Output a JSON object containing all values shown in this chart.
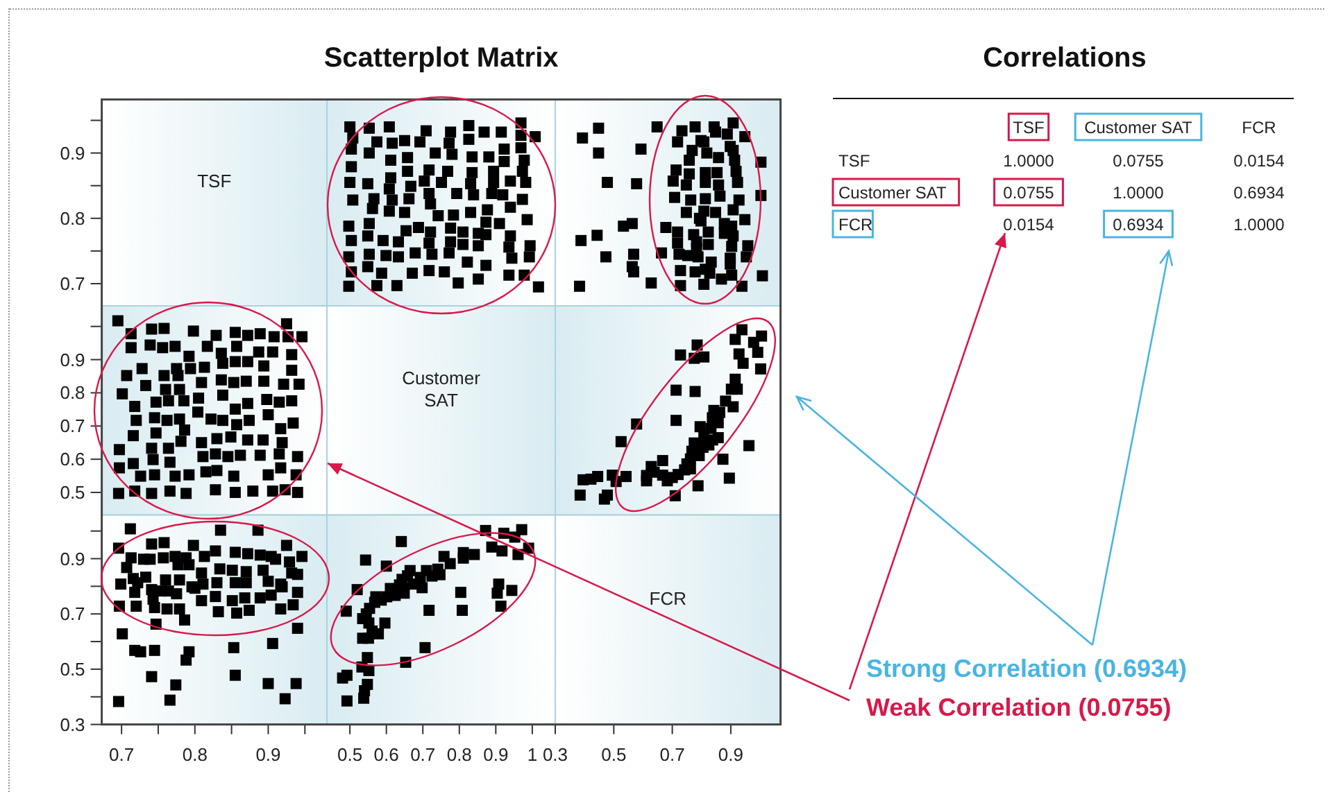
{
  "chart_data": [
    {
      "type": "other",
      "title": "Scatterplot Matrix"
    },
    {
      "type": "scatter",
      "annotations": [
        "TSF"
      ],
      "xlim": [
        0.673,
        0.98
      ],
      "ylim": [
        0.666,
        0.982
      ],
      "yticks": [
        0.7,
        {
          "value": 0.75,
          "label": null
        },
        0.8,
        {
          "value": 0.85,
          "label": null
        },
        0.9,
        {
          "value": 0.95,
          "label": null
        }
      ],
      "tick_labels": "y"
    },
    {
      "type": "scatter",
      "color": "#000000",
      "marker": "square",
      "xlim": [
        0.437,
        1.063
      ],
      "ylim": [
        0.666,
        0.982
      ],
      "x": [
        1.017,
        0.978,
        0.992,
        0.994,
        0.986,
        0.973,
        0.982,
        0.973,
        0.978,
        0.969,
        1.008,
        0.969,
        0.969,
        0.936,
        0.944,
        0.936,
        0.94,
        0.91,
        0.94,
        0.919,
        0.94,
        0.923,
        0.923,
        0.915,
        0.852,
        0.873,
        0.852,
        0.873,
        0.852,
        0.873,
        0.877,
        0.889,
        0.894,
        0.894,
        0.881,
        0.868,
        0.822,
        0.797,
        0.81,
        0.81,
        0.831,
        0.839,
        0.831,
        0.835,
        0.835,
        0.826,
        0.826,
        0.759,
        0.772,
        0.776,
        0.776,
        0.784,
        0.793,
        0.751,
        0.768,
        0.78,
        0.772,
        0.776,
        0.717,
        0.725,
        0.717,
        0.721,
        0.742,
        0.721,
        0.717,
        0.704,
        0.717,
        0.734,
        0.692,
        0.709,
        0.671,
        0.679,
        0.688,
        0.654,
        0.65,
        0.662,
        0.667,
        0.658,
        0.658,
        0.65,
        0.629,
        0.633,
        0.633,
        0.608,
        0.616,
        0.608,
        0.612,
        0.612,
        0.616,
        0.608,
        0.574,
        0.587,
        0.599,
        0.591,
        0.549,
        0.553,
        0.549,
        0.553,
        0.562,
        0.566,
        0.549,
        0.553,
        0.574,
        0.553,
        0.497,
        0.504,
        0.497,
        0.504,
        0.497,
        0.508,
        0.5,
        0.504,
        0.504,
        0.508,
        0.5
      ],
      "values": [
        0.695,
        0.713,
        0.741,
        0.758,
        0.798,
        0.829,
        0.855,
        0.872,
        0.889,
        0.908,
        0.925,
        0.927,
        0.946,
        0.713,
        0.739,
        0.756,
        0.773,
        0.792,
        0.817,
        0.836,
        0.857,
        0.887,
        0.906,
        0.932,
        0.707,
        0.728,
        0.758,
        0.775,
        0.777,
        0.794,
        0.813,
        0.838,
        0.855,
        0.872,
        0.894,
        0.932,
        0.733,
        0.701,
        0.76,
        0.779,
        0.809,
        0.836,
        0.853,
        0.87,
        0.894,
        0.921,
        0.942,
        0.718,
        0.747,
        0.764,
        0.785,
        0.805,
        0.838,
        0.855,
        0.872,
        0.898,
        0.915,
        0.932,
        0.72,
        0.745,
        0.762,
        0.779,
        0.804,
        0.822,
        0.838,
        0.857,
        0.874,
        0.9,
        0.917,
        0.934,
        0.716,
        0.747,
        0.786,
        0.781,
        0.809,
        0.83,
        0.849,
        0.872,
        0.893,
        0.919,
        0.697,
        0.741,
        0.764,
        0.811,
        0.828,
        0.845,
        0.862,
        0.889,
        0.915,
        0.94,
        0.697,
        0.716,
        0.743,
        0.766,
        0.726,
        0.745,
        0.773,
        0.792,
        0.815,
        0.83,
        0.853,
        0.9,
        0.917,
        0.938,
        0.696,
        0.718,
        0.741,
        0.766,
        0.788,
        0.828,
        0.855,
        0.879,
        0.906,
        0.923,
        0.94
      ]
    },
    {
      "type": "scatter",
      "color": "#000000",
      "marker": "square",
      "xlim": [
        0.3,
        1.07
      ],
      "ylim": [
        0.666,
        0.982
      ],
      "x": [
        1.008,
        1.003,
        1.003,
        0.938,
        0.953,
        0.958,
        0.948,
        0.948,
        0.903,
        0.898,
        0.898,
        0.903,
        0.908,
        0.903,
        0.908,
        0.928,
        0.923,
        0.918,
        0.913,
        0.908,
        0.888,
        0.908,
        0.868,
        0.828,
        0.833,
        0.823,
        0.878,
        0.878,
        0.848,
        0.863,
        0.858,
        0.853,
        0.858,
        0.898,
        0.848,
        0.808,
        0.813,
        0.788,
        0.783,
        0.823,
        0.798,
        0.808,
        0.813,
        0.813,
        0.813,
        0.818,
        0.798,
        0.843,
        0.778,
        0.753,
        0.783,
        0.773,
        0.793,
        0.763,
        0.748,
        0.758,
        0.758,
        0.768,
        0.808,
        0.778,
        0.728,
        0.728,
        0.723,
        0.718,
        0.718,
        0.748,
        0.708,
        0.703,
        0.713,
        0.718,
        0.733,
        0.663,
        0.678,
        0.628,
        0.568,
        0.563,
        0.568,
        0.563,
        0.533,
        0.578,
        0.593,
        0.648,
        0.473,
        0.443,
        0.478,
        0.448,
        0.448,
        0.383,
        0.388,
        0.393
      ],
      "values": [
        0.712,
        0.835,
        0.886,
        0.696,
        0.741,
        0.758,
        0.798,
        0.925,
        0.713,
        0.73,
        0.739,
        0.757,
        0.773,
        0.788,
        0.813,
        0.828,
        0.855,
        0.872,
        0.889,
        0.904,
        0.929,
        0.946,
        0.707,
        0.716,
        0.733,
        0.76,
        0.777,
        0.792,
        0.809,
        0.834,
        0.851,
        0.87,
        0.893,
        0.91,
        0.932,
        0.699,
        0.722,
        0.741,
        0.764,
        0.779,
        0.796,
        0.811,
        0.83,
        0.855,
        0.87,
        0.9,
        0.919,
        0.94,
        0.718,
        0.743,
        0.754,
        0.775,
        0.8,
        0.828,
        0.851,
        0.868,
        0.889,
        0.904,
        0.917,
        0.94,
        0.697,
        0.72,
        0.745,
        0.762,
        0.779,
        0.809,
        0.832,
        0.857,
        0.874,
        0.917,
        0.934,
        0.747,
        0.786,
        0.701,
        0.718,
        0.726,
        0.745,
        0.792,
        0.788,
        0.853,
        0.906,
        0.94,
        0.741,
        0.774,
        0.855,
        0.9,
        0.938,
        0.696,
        0.766,
        0.923
      ]
    },
    {
      "type": "scatter",
      "color": "#000000",
      "marker": "square",
      "xlim": [
        0.673,
        0.98
      ],
      "ylim": [
        0.432,
        1.062
      ],
      "yticks": [
        0.5,
        0.6,
        0.7,
        0.8,
        0.9,
        {
          "value": 1.0,
          "label": null
        }
      ],
      "tick_labels": "y",
      "x": [
        0.695,
        0.713,
        0.741,
        0.758,
        0.798,
        0.829,
        0.855,
        0.872,
        0.889,
        0.908,
        0.925,
        0.927,
        0.946,
        0.713,
        0.739,
        0.756,
        0.773,
        0.792,
        0.817,
        0.836,
        0.857,
        0.887,
        0.906,
        0.932,
        0.707,
        0.728,
        0.758,
        0.775,
        0.777,
        0.794,
        0.813,
        0.838,
        0.855,
        0.872,
        0.894,
        0.932,
        0.733,
        0.701,
        0.76,
        0.779,
        0.809,
        0.836,
        0.853,
        0.87,
        0.894,
        0.921,
        0.942,
        0.718,
        0.747,
        0.764,
        0.785,
        0.805,
        0.838,
        0.855,
        0.872,
        0.898,
        0.915,
        0.932,
        0.72,
        0.745,
        0.762,
        0.779,
        0.804,
        0.822,
        0.838,
        0.857,
        0.874,
        0.9,
        0.917,
        0.934,
        0.716,
        0.747,
        0.786,
        0.781,
        0.809,
        0.83,
        0.849,
        0.872,
        0.893,
        0.919,
        0.697,
        0.741,
        0.764,
        0.811,
        0.828,
        0.845,
        0.862,
        0.889,
        0.915,
        0.94,
        0.697,
        0.716,
        0.743,
        0.766,
        0.726,
        0.745,
        0.773,
        0.792,
        0.815,
        0.83,
        0.853,
        0.9,
        0.917,
        0.938,
        0.696,
        0.718,
        0.741,
        0.766,
        0.788,
        0.828,
        0.855,
        0.879,
        0.906,
        0.923,
        0.94
      ],
      "values": [
        1.017,
        0.978,
        0.992,
        0.994,
        0.986,
        0.973,
        0.982,
        0.973,
        0.978,
        0.969,
        1.008,
        0.969,
        0.969,
        0.936,
        0.944,
        0.936,
        0.94,
        0.91,
        0.94,
        0.919,
        0.94,
        0.923,
        0.923,
        0.915,
        0.852,
        0.873,
        0.852,
        0.873,
        0.852,
        0.873,
        0.877,
        0.889,
        0.894,
        0.894,
        0.881,
        0.868,
        0.822,
        0.797,
        0.81,
        0.81,
        0.831,
        0.839,
        0.831,
        0.835,
        0.835,
        0.826,
        0.826,
        0.759,
        0.772,
        0.776,
        0.776,
        0.784,
        0.793,
        0.751,
        0.768,
        0.78,
        0.772,
        0.776,
        0.717,
        0.725,
        0.717,
        0.721,
        0.742,
        0.721,
        0.717,
        0.704,
        0.717,
        0.734,
        0.692,
        0.709,
        0.671,
        0.679,
        0.688,
        0.654,
        0.65,
        0.662,
        0.667,
        0.658,
        0.658,
        0.65,
        0.629,
        0.633,
        0.633,
        0.608,
        0.616,
        0.608,
        0.612,
        0.612,
        0.616,
        0.608,
        0.574,
        0.587,
        0.599,
        0.591,
        0.549,
        0.553,
        0.549,
        0.553,
        0.562,
        0.566,
        0.549,
        0.553,
        0.574,
        0.553,
        0.497,
        0.504,
        0.497,
        0.504,
        0.497,
        0.508,
        0.5,
        0.504,
        0.504,
        0.508,
        0.5
      ]
    },
    {
      "type": "other",
      "annotations": [
        "Customer SAT"
      ]
    },
    {
      "type": "scatter",
      "color": "#000000",
      "marker": "square",
      "xlim": [
        0.3,
        1.07
      ],
      "ylim": [
        0.432,
        1.062
      ],
      "x": [
        1.002,
        0.992,
        1.005,
        0.978,
        0.962,
        0.942,
        0.928,
        0.915,
        0.938,
        0.922,
        0.915,
        0.902,
        0.908,
        0.882,
        0.895,
        0.873,
        0.857,
        0.862,
        0.842,
        0.857,
        0.825,
        0.805,
        0.838,
        0.832,
        0.837,
        0.795,
        0.793,
        0.792,
        0.762,
        0.75,
        0.762,
        0.742,
        0.72,
        0.7,
        0.683,
        0.667,
        0.667,
        0.638,
        0.628,
        0.612,
        0.612,
        0.788,
        0.71,
        0.778,
        0.713,
        0.713,
        0.808,
        0.775,
        0.785,
        0.728,
        0.578,
        0.525,
        0.542,
        0.508,
        0.495,
        0.468,
        0.478,
        0.445,
        0.422,
        0.395,
        0.385,
        0.775,
        0.767,
        0.808
      ],
      "values": [
        0.872,
        0.922,
        0.971,
        0.952,
        0.641,
        0.889,
        0.917,
        0.961,
        0.99,
        0.811,
        0.841,
        0.811,
        0.758,
        0.775,
        0.543,
        0.6,
        0.71,
        0.741,
        0.747,
        0.665,
        0.643,
        0.636,
        0.658,
        0.693,
        0.725,
        0.698,
        0.645,
        0.611,
        0.601,
        0.586,
        0.571,
        0.568,
        0.554,
        0.545,
        0.535,
        0.552,
        0.596,
        0.561,
        0.578,
        0.535,
        0.551,
        0.52,
        0.49,
        0.804,
        0.717,
        0.808,
        0.908,
        0.904,
        0.944,
        0.914,
        0.706,
        0.653,
        0.548,
        0.533,
        0.552,
        0.48,
        0.492,
        0.548,
        0.54,
        0.538,
        0.492,
        0.649,
        0.624,
        0.674
      ]
    },
    {
      "type": "scatter",
      "color": "#000000",
      "marker": "square",
      "xlim": [
        0.673,
        0.98
      ],
      "ylim": [
        0.3,
        1.058
      ],
      "xticks": [
        0.7,
        {
          "value": 0.75,
          "label": null
        },
        0.8,
        {
          "value": 0.85,
          "label": null
        },
        0.9,
        {
          "value": 0.95,
          "label": null
        }
      ],
      "yticks": [
        0.3,
        {
          "value": 0.4,
          "label": null
        },
        0.5,
        {
          "value": 0.6,
          "label": null
        },
        0.7,
        {
          "value": 0.8,
          "label": null
        },
        0.9,
        {
          "value": 1.0,
          "label": null
        }
      ],
      "x": [
        0.712,
        0.835,
        0.886,
        0.696,
        0.741,
        0.758,
        0.798,
        0.925,
        0.713,
        0.73,
        0.739,
        0.757,
        0.773,
        0.788,
        0.813,
        0.828,
        0.855,
        0.872,
        0.889,
        0.904,
        0.929,
        0.946,
        0.707,
        0.716,
        0.733,
        0.76,
        0.777,
        0.792,
        0.809,
        0.834,
        0.851,
        0.87,
        0.893,
        0.91,
        0.932,
        0.699,
        0.722,
        0.741,
        0.764,
        0.779,
        0.796,
        0.811,
        0.83,
        0.855,
        0.87,
        0.9,
        0.919,
        0.94,
        0.718,
        0.743,
        0.754,
        0.775,
        0.8,
        0.828,
        0.851,
        0.868,
        0.889,
        0.904,
        0.917,
        0.94,
        0.697,
        0.72,
        0.745,
        0.762,
        0.779,
        0.809,
        0.832,
        0.857,
        0.874,
        0.917,
        0.934,
        0.747,
        0.786,
        0.701,
        0.718,
        0.726,
        0.745,
        0.792,
        0.788,
        0.853,
        0.906,
        0.94,
        0.741,
        0.774,
        0.855,
        0.9,
        0.938,
        0.696,
        0.766,
        0.923
      ],
      "values": [
        1.008,
        1.003,
        1.003,
        0.938,
        0.953,
        0.958,
        0.948,
        0.948,
        0.903,
        0.898,
        0.898,
        0.903,
        0.908,
        0.903,
        0.908,
        0.928,
        0.923,
        0.918,
        0.913,
        0.908,
        0.888,
        0.908,
        0.868,
        0.828,
        0.833,
        0.823,
        0.878,
        0.878,
        0.848,
        0.863,
        0.858,
        0.853,
        0.858,
        0.898,
        0.848,
        0.808,
        0.813,
        0.788,
        0.783,
        0.823,
        0.798,
        0.808,
        0.813,
        0.813,
        0.813,
        0.818,
        0.798,
        0.843,
        0.778,
        0.753,
        0.783,
        0.773,
        0.793,
        0.763,
        0.748,
        0.758,
        0.758,
        0.768,
        0.808,
        0.778,
        0.728,
        0.728,
        0.723,
        0.718,
        0.718,
        0.748,
        0.708,
        0.703,
        0.713,
        0.718,
        0.733,
        0.663,
        0.678,
        0.628,
        0.568,
        0.563,
        0.568,
        0.563,
        0.533,
        0.578,
        0.593,
        0.648,
        0.473,
        0.443,
        0.478,
        0.448,
        0.448,
        0.383,
        0.388,
        0.393
      ]
    },
    {
      "type": "scatter",
      "color": "#000000",
      "marker": "square",
      "xlim": [
        0.437,
        1.063
      ],
      "ylim": [
        0.3,
        1.058
      ],
      "xticks": [
        0.5,
        0.6,
        0.7,
        0.8,
        0.9,
        1
      ],
      "tick_labels": "x",
      "x": [
        0.872,
        0.922,
        0.971,
        0.952,
        0.641,
        0.889,
        0.917,
        0.961,
        0.99,
        0.811,
        0.841,
        0.811,
        0.758,
        0.775,
        0.543,
        0.6,
        0.71,
        0.741,
        0.747,
        0.665,
        0.643,
        0.636,
        0.658,
        0.693,
        0.725,
        0.698,
        0.645,
        0.611,
        0.601,
        0.586,
        0.571,
        0.568,
        0.554,
        0.545,
        0.535,
        0.552,
        0.596,
        0.561,
        0.578,
        0.535,
        0.551,
        0.52,
        0.49,
        0.804,
        0.717,
        0.808,
        0.908,
        0.904,
        0.944,
        0.914,
        0.706,
        0.653,
        0.548,
        0.533,
        0.552,
        0.48,
        0.492,
        0.548,
        0.54,
        0.538,
        0.492,
        0.649,
        0.624,
        0.674
      ],
      "values": [
        1.002,
        0.992,
        1.005,
        0.978,
        0.962,
        0.942,
        0.928,
        0.915,
        0.938,
        0.922,
        0.915,
        0.902,
        0.908,
        0.882,
        0.895,
        0.873,
        0.857,
        0.862,
        0.842,
        0.857,
        0.825,
        0.805,
        0.838,
        0.832,
        0.837,
        0.795,
        0.793,
        0.792,
        0.762,
        0.75,
        0.762,
        0.742,
        0.72,
        0.7,
        0.683,
        0.667,
        0.667,
        0.638,
        0.628,
        0.612,
        0.612,
        0.788,
        0.71,
        0.778,
        0.713,
        0.713,
        0.808,
        0.775,
        0.785,
        0.728,
        0.578,
        0.525,
        0.542,
        0.508,
        0.495,
        0.468,
        0.478,
        0.445,
        0.422,
        0.395,
        0.385,
        0.775,
        0.767,
        0.808
      ]
    },
    {
      "type": "scatter",
      "annotations": [
        "FCR"
      ],
      "xlim": [
        0.3,
        1.07
      ],
      "ylim": [
        0.3,
        1.058
      ],
      "xticks": [
        0.3,
        0.5,
        0.7,
        0.9
      ],
      "tick_labels": "x"
    },
    {
      "type": "other",
      "title": "Correlations",
      "categories": [
        "TSF",
        "Customer SAT",
        "FCR"
      ],
      "y_categories": [
        "TSF",
        "Customer SAT",
        "FCR"
      ],
      "cell_labels": [
        [
          "1.0000",
          "0.0755",
          "0.0154"
        ],
        [
          "0.0755",
          "1.0000",
          "0.6934"
        ],
        [
          "0.0154",
          "0.6934",
          "1.0000"
        ]
      ],
      "annotations": [
        "Strong Correlation (0.6934)",
        "Weak Correlation (0.0755)"
      ]
    }
  ]
}
